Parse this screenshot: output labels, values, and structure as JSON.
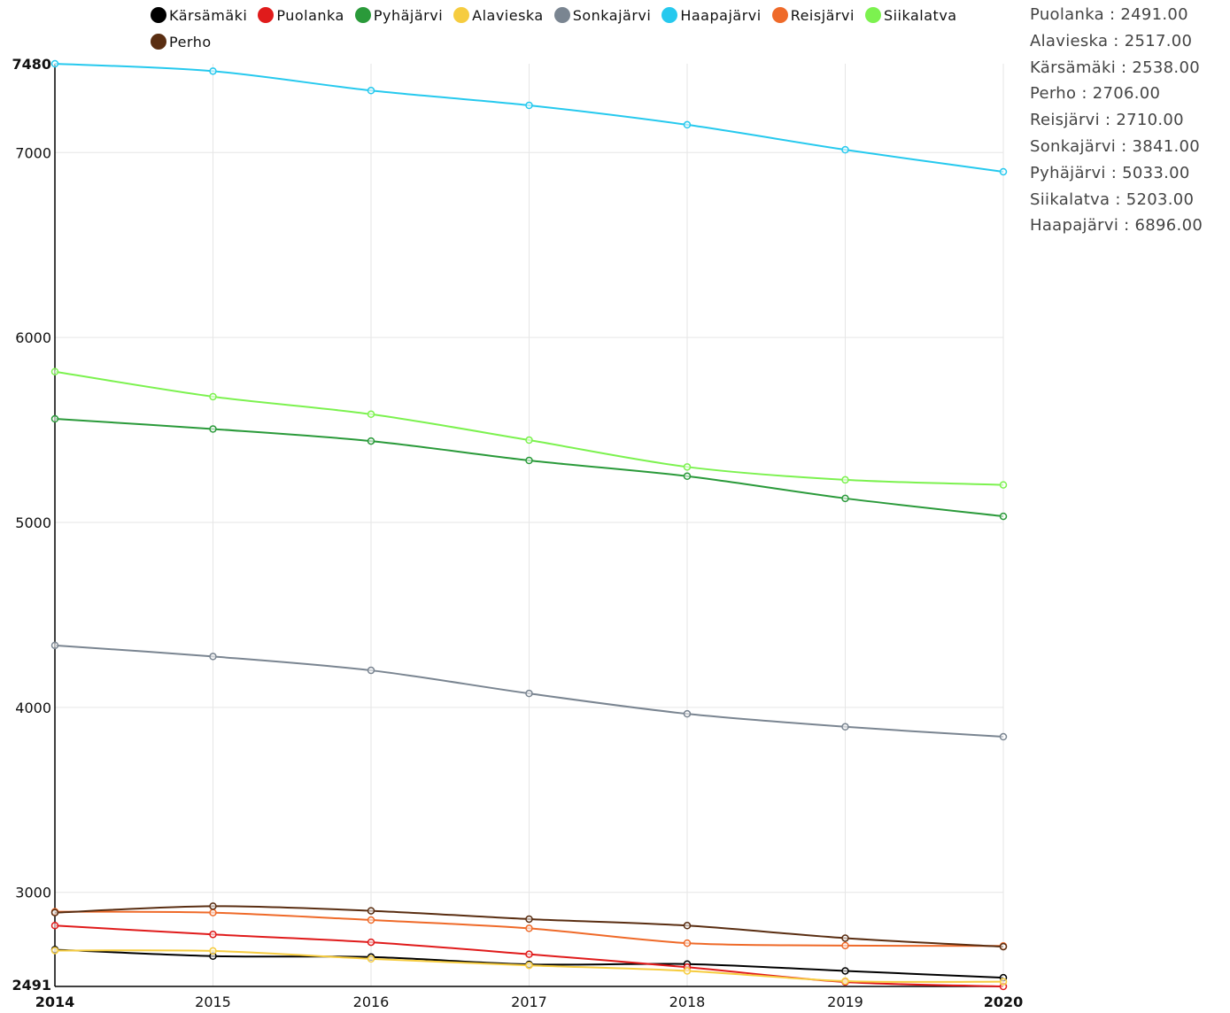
{
  "chart_data": {
    "type": "line",
    "x": [
      "2014",
      "2015",
      "2016",
      "2017",
      "2018",
      "2019",
      "2020"
    ],
    "ylim": [
      2491,
      7480
    ],
    "y_ticks": [
      "2491",
      "3000",
      "4000",
      "5000",
      "6000",
      "7000",
      "7480"
    ],
    "x_ticks": [
      "2014",
      "2015",
      "2016",
      "2017",
      "2018",
      "2019",
      "2020"
    ],
    "grid": true,
    "legend_position": "top",
    "series": [
      {
        "name": "Kärsämäki",
        "color": "#000000",
        "values": [
          2690,
          2655,
          2650,
          2610,
          2612,
          2575,
          2538
        ]
      },
      {
        "name": "Puolanka",
        "color": "#e01b1b",
        "values": [
          2820,
          2772,
          2730,
          2665,
          2595,
          2515,
          2491
        ]
      },
      {
        "name": "Pyhäjärvi",
        "color": "#2a9a3a",
        "values": [
          5560,
          5505,
          5440,
          5335,
          5250,
          5130,
          5033
        ]
      },
      {
        "name": "Alavieska",
        "color": "#f6cc3f",
        "values": [
          2685,
          2683,
          2640,
          2605,
          2575,
          2520,
          2517
        ]
      },
      {
        "name": "Sonkajärvi",
        "color": "#7a8591",
        "values": [
          4335,
          4275,
          4200,
          4075,
          3965,
          3895,
          3841
        ]
      },
      {
        "name": "Haapajärvi",
        "color": "#26c9ee",
        "values": [
          7480,
          7440,
          7335,
          7255,
          7150,
          7015,
          6896
        ]
      },
      {
        "name": "Reisjärvi",
        "color": "#ef6a29",
        "values": [
          2895,
          2890,
          2850,
          2805,
          2725,
          2712,
          2710
        ]
      },
      {
        "name": "Siikalatva",
        "color": "#7cf24f",
        "values": [
          5815,
          5680,
          5585,
          5445,
          5300,
          5230,
          5203
        ]
      },
      {
        "name": "Perho",
        "color": "#5a2e12",
        "values": [
          2890,
          2925,
          2900,
          2855,
          2820,
          2752,
          2706
        ]
      }
    ],
    "sorted_values_list": [
      {
        "label": "Puolanka : 2491.00"
      },
      {
        "label": "Alavieska : 2517.00"
      },
      {
        "label": "Kärsämäki : 2538.00"
      },
      {
        "label": "Perho : 2706.00"
      },
      {
        "label": "Reisjärvi : 2710.00"
      },
      {
        "label": "Sonkajärvi : 3841.00"
      },
      {
        "label": "Pyhäjärvi : 5033.00"
      },
      {
        "label": "Siikalatva : 5203.00"
      },
      {
        "label": "Haapajärvi : 6896.00"
      }
    ]
  }
}
